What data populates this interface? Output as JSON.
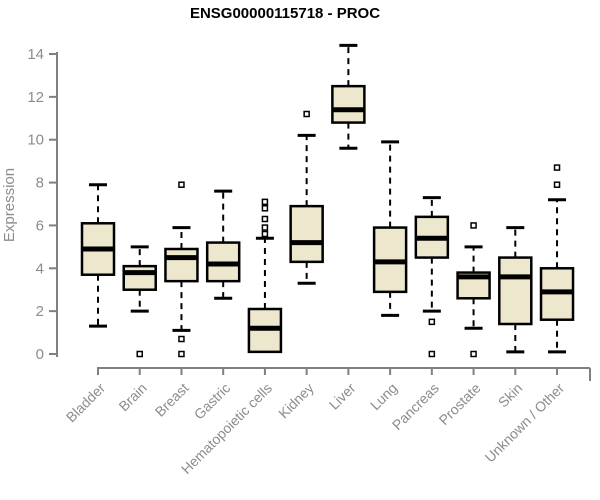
{
  "chart_data": {
    "type": "boxplot",
    "title": "ENSG00000115718 - PROC",
    "xlabel": "",
    "ylabel": "Expression",
    "ylim": [
      0,
      14
    ],
    "yticks": [
      0,
      2,
      4,
      6,
      8,
      10,
      12,
      14
    ],
    "grid": false,
    "legend": "none",
    "categories": [
      "Bladder",
      "Brain",
      "Breast",
      "Gastric",
      "Hematopoietic cells",
      "Kidney",
      "Liver",
      "Lung",
      "Pancreas",
      "Prostate",
      "Skin",
      "Unknown / Other"
    ],
    "series": [
      {
        "name": "Bladder",
        "low": 1.3,
        "q1": 3.7,
        "median": 4.9,
        "q3": 6.1,
        "high": 7.9,
        "outliers": []
      },
      {
        "name": "Brain",
        "low": 2.0,
        "q1": 3.0,
        "median": 3.8,
        "q3": 4.1,
        "high": 5.0,
        "outliers": [
          0
        ]
      },
      {
        "name": "Breast",
        "low": 1.1,
        "q1": 3.4,
        "median": 4.5,
        "q3": 4.9,
        "high": 5.9,
        "outliers": [
          7.9,
          0.7,
          0
        ]
      },
      {
        "name": "Gastric",
        "low": 2.6,
        "q1": 3.4,
        "median": 4.2,
        "q3": 5.2,
        "high": 7.6,
        "outliers": []
      },
      {
        "name": "Hematopoietic cells",
        "low": 0.1,
        "q1": 0.1,
        "median": 1.2,
        "q3": 2.1,
        "high": 5.4,
        "outliers": [
          5.6,
          5.9,
          6.3,
          6.8,
          7.1
        ]
      },
      {
        "name": "Kidney",
        "low": 3.3,
        "q1": 4.3,
        "median": 5.2,
        "q3": 6.9,
        "high": 10.2,
        "outliers": [
          11.2
        ]
      },
      {
        "name": "Liver",
        "low": 9.6,
        "q1": 10.8,
        "median": 11.4,
        "q3": 12.5,
        "high": 14.4,
        "outliers": []
      },
      {
        "name": "Lung",
        "low": 1.8,
        "q1": 2.9,
        "median": 4.3,
        "q3": 5.9,
        "high": 9.9,
        "outliers": []
      },
      {
        "name": "Pancreas",
        "low": 2.0,
        "q1": 4.5,
        "median": 5.4,
        "q3": 6.4,
        "high": 7.3,
        "outliers": [
          1.5,
          0
        ]
      },
      {
        "name": "Prostate",
        "low": 1.2,
        "q1": 2.6,
        "median": 3.6,
        "q3": 3.8,
        "high": 5.0,
        "outliers": [
          6.0,
          0
        ]
      },
      {
        "name": "Skin",
        "low": 0.1,
        "q1": 1.4,
        "median": 3.6,
        "q3": 4.5,
        "high": 5.9,
        "outliers": []
      },
      {
        "name": "Unknown / Other",
        "low": 0.1,
        "q1": 1.6,
        "median": 2.9,
        "q3": 4.0,
        "high": 7.2,
        "outliers": [
          8.7,
          7.9
        ]
      }
    ],
    "colors": {
      "box_fill": "#EDE8CD",
      "box_border": "#000000",
      "median": "#000000",
      "whisker": "#000000",
      "outlier_fill": "#ffffff",
      "outlier_border": "#000000",
      "axis_line": "#808080",
      "tick_label": "#8c8c8c",
      "title": "#000000",
      "background": "#ffffff"
    }
  }
}
